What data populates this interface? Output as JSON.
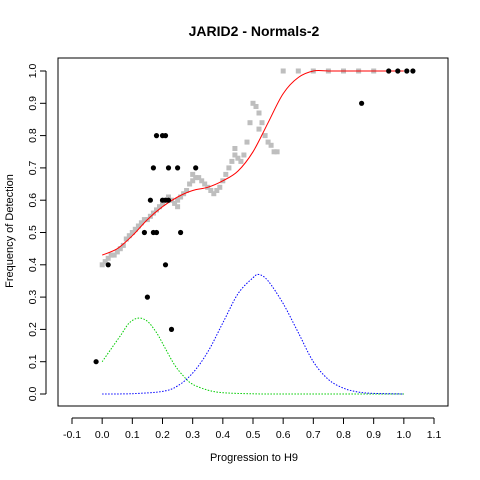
{
  "chart_data": {
    "type": "scatter",
    "title": "JARID2 - Normals-2",
    "xlabel": "Progression to H9",
    "ylabel": "Frequency of Detection",
    "xlim": [
      -0.1,
      1.1
    ],
    "ylim": [
      0,
      1.0
    ],
    "x_ticks": [
      "-0.1",
      "0.0",
      "0.1",
      "0.2",
      "0.3",
      "0.4",
      "0.5",
      "0.6",
      "0.7",
      "0.8",
      "0.9",
      "1.0",
      "1.1"
    ],
    "y_ticks": [
      "0.0",
      "0.1",
      "0.2",
      "0.3",
      "0.4",
      "0.5",
      "0.6",
      "0.7",
      "0.8",
      "0.9",
      "1.0"
    ],
    "grid": false,
    "colors": {
      "samples": "#000000",
      "background_points": "#bebebe",
      "fitted_curve": "#ff0000",
      "density_1": "#00cc00",
      "density_2": "#0000ff"
    },
    "series": [
      {
        "kind": "points",
        "points": [
          [
            -0.02,
            0.1
          ],
          [
            0.02,
            0.4
          ],
          [
            0.15,
            0.3
          ],
          [
            0.14,
            0.5
          ],
          [
            0.17,
            0.5
          ],
          [
            0.18,
            0.5
          ],
          [
            0.16,
            0.6
          ],
          [
            0.2,
            0.6
          ],
          [
            0.21,
            0.6
          ],
          [
            0.22,
            0.6
          ],
          [
            0.17,
            0.7
          ],
          [
            0.22,
            0.7
          ],
          [
            0.25,
            0.7
          ],
          [
            0.31,
            0.7
          ],
          [
            0.18,
            0.8
          ],
          [
            0.2,
            0.8
          ],
          [
            0.21,
            0.8
          ],
          [
            0.21,
            0.4
          ],
          [
            0.23,
            0.2
          ],
          [
            0.26,
            0.5
          ],
          [
            0.86,
            0.9
          ],
          [
            0.95,
            1.0
          ],
          [
            0.98,
            1.0
          ],
          [
            1.01,
            1.0
          ],
          [
            1.03,
            1.0
          ]
        ]
      },
      {
        "kind": "background",
        "points": [
          [
            0.0,
            0.4
          ],
          [
            0.01,
            0.41
          ],
          [
            0.02,
            0.42
          ],
          [
            0.03,
            0.43
          ],
          [
            0.04,
            0.43
          ],
          [
            0.05,
            0.44
          ],
          [
            0.06,
            0.45
          ],
          [
            0.07,
            0.46
          ],
          [
            0.08,
            0.48
          ],
          [
            0.09,
            0.49
          ],
          [
            0.1,
            0.5
          ],
          [
            0.11,
            0.51
          ],
          [
            0.12,
            0.52
          ],
          [
            0.13,
            0.53
          ],
          [
            0.14,
            0.54
          ],
          [
            0.15,
            0.54
          ],
          [
            0.16,
            0.55
          ],
          [
            0.17,
            0.56
          ],
          [
            0.18,
            0.57
          ],
          [
            0.19,
            0.58
          ],
          [
            0.2,
            0.59
          ],
          [
            0.21,
            0.6
          ],
          [
            0.22,
            0.61
          ],
          [
            0.23,
            0.6
          ],
          [
            0.24,
            0.59
          ],
          [
            0.25,
            0.6
          ],
          [
            0.26,
            0.61
          ],
          [
            0.27,
            0.62
          ],
          [
            0.28,
            0.63
          ],
          [
            0.29,
            0.65
          ],
          [
            0.3,
            0.66
          ],
          [
            0.31,
            0.67
          ],
          [
            0.32,
            0.67
          ],
          [
            0.33,
            0.66
          ],
          [
            0.34,
            0.65
          ],
          [
            0.35,
            0.64
          ],
          [
            0.36,
            0.63
          ],
          [
            0.37,
            0.62
          ],
          [
            0.38,
            0.63
          ],
          [
            0.39,
            0.64
          ],
          [
            0.4,
            0.66
          ],
          [
            0.41,
            0.68
          ],
          [
            0.42,
            0.7
          ],
          [
            0.43,
            0.72
          ],
          [
            0.44,
            0.74
          ],
          [
            0.45,
            0.73
          ],
          [
            0.46,
            0.72
          ],
          [
            0.47,
            0.74
          ],
          [
            0.48,
            0.78
          ],
          [
            0.49,
            0.84
          ],
          [
            0.5,
            0.9
          ],
          [
            0.51,
            0.89
          ],
          [
            0.52,
            0.87
          ],
          [
            0.53,
            0.84
          ],
          [
            0.54,
            0.8
          ],
          [
            0.55,
            0.78
          ],
          [
            0.56,
            0.77
          ],
          [
            0.57,
            0.75
          ],
          [
            0.58,
            0.75
          ],
          [
            0.3,
            0.68
          ],
          [
            0.44,
            0.76
          ],
          [
            0.52,
            0.82
          ],
          [
            0.25,
            0.58
          ],
          [
            0.6,
            1.0
          ],
          [
            0.65,
            1.0
          ],
          [
            0.7,
            1.0
          ],
          [
            0.75,
            1.0
          ],
          [
            0.8,
            1.0
          ],
          [
            0.85,
            1.0
          ],
          [
            0.9,
            1.0
          ]
        ]
      },
      {
        "kind": "fitted_curve",
        "x": [
          0.0,
          0.05,
          0.1,
          0.15,
          0.2,
          0.25,
          0.3,
          0.35,
          0.4,
          0.45,
          0.5,
          0.55,
          0.6,
          0.65,
          0.7,
          0.75,
          0.8,
          0.85,
          0.9,
          0.95,
          1.0
        ],
        "y": [
          0.43,
          0.45,
          0.49,
          0.54,
          0.58,
          0.61,
          0.63,
          0.64,
          0.66,
          0.69,
          0.75,
          0.84,
          0.93,
          0.98,
          1.0,
          1.0,
          1.0,
          1.0,
          1.0,
          1.0,
          1.0
        ]
      },
      {
        "kind": "density",
        "x": [
          0.0,
          0.03,
          0.06,
          0.09,
          0.12,
          0.15,
          0.18,
          0.21,
          0.24,
          0.27,
          0.3,
          0.35,
          0.4,
          0.5,
          0.6,
          0.7,
          0.8,
          0.9,
          1.0
        ],
        "y": [
          0.1,
          0.14,
          0.18,
          0.22,
          0.235,
          0.225,
          0.19,
          0.14,
          0.09,
          0.055,
          0.03,
          0.012,
          0.004,
          0.0005,
          0.0,
          0.0,
          0.0,
          0.0,
          0.0
        ]
      },
      {
        "kind": "density",
        "x": [
          0.0,
          0.1,
          0.2,
          0.25,
          0.3,
          0.35,
          0.4,
          0.45,
          0.5,
          0.52,
          0.55,
          0.6,
          0.65,
          0.7,
          0.75,
          0.8,
          0.85,
          0.9,
          1.0
        ],
        "y": [
          0.0,
          0.001,
          0.008,
          0.025,
          0.065,
          0.13,
          0.22,
          0.31,
          0.36,
          0.37,
          0.35,
          0.28,
          0.19,
          0.1,
          0.045,
          0.018,
          0.006,
          0.002,
          0.0
        ]
      }
    ]
  }
}
